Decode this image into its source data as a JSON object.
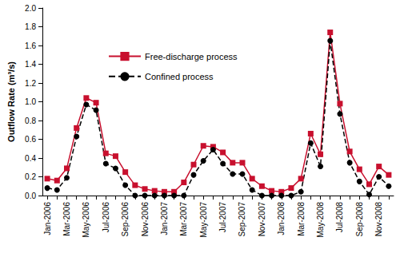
{
  "chart_data": {
    "type": "line",
    "y_label": "Outflow Rate (m³/s)",
    "categories": [
      "Jan-2006",
      null,
      "Mar-2006",
      null,
      "May-2006",
      null,
      "Jul-2006",
      null,
      "Sep-2006",
      null,
      "Nov-2006",
      null,
      "Jan-2007",
      null,
      "Mar-2007",
      null,
      "May-2007",
      null,
      "Jul-2007",
      null,
      "Sep-2007",
      null,
      "Nov-2007",
      null,
      "Jan-2008",
      null,
      "Mar-2008",
      null,
      "May-2008",
      null,
      "Jul-2008",
      null,
      "Sep-2008",
      null,
      "Nov-2008",
      null
    ],
    "series": [
      {
        "name": "Free-discharge process",
        "color": "#c8102e",
        "marker": "square",
        "line_style": "solid",
        "values": [
          0.18,
          0.16,
          0.29,
          0.72,
          1.04,
          0.99,
          0.45,
          0.42,
          0.25,
          0.11,
          0.07,
          0.05,
          0.04,
          0.04,
          0.14,
          0.33,
          0.53,
          0.52,
          0.46,
          0.35,
          0.35,
          0.18,
          0.1,
          0.05,
          0.04,
          0.08,
          0.18,
          0.66,
          0.44,
          1.74,
          0.98,
          0.47,
          0.28,
          0.12,
          0.31,
          0.22
        ]
      },
      {
        "name": "Confined process",
        "color": "#000000",
        "marker": "circle",
        "line_style": "dashed",
        "values": [
          0.08,
          0.06,
          0.19,
          0.63,
          0.97,
          0.91,
          0.34,
          0.29,
          0.11,
          0.0,
          0.0,
          0.0,
          0.0,
          0.0,
          0.0,
          0.22,
          0.37,
          0.49,
          0.34,
          0.23,
          0.23,
          0.06,
          0.0,
          0.0,
          0.0,
          0.0,
          0.04,
          0.56,
          0.31,
          1.65,
          0.87,
          0.35,
          0.15,
          0.01,
          0.2,
          0.1
        ]
      }
    ],
    "ylim": [
      0,
      2
    ],
    "yticks": [
      {
        "value": 0,
        "label": "0.0"
      },
      0.2,
      0.4,
      0.6,
      0.8,
      {
        "value": 1,
        "label": "1.0"
      },
      1.2,
      1.4,
      1.6,
      1.8,
      {
        "value": 2,
        "label": "2.0"
      }
    ],
    "grid": false,
    "legend": "upper left"
  }
}
